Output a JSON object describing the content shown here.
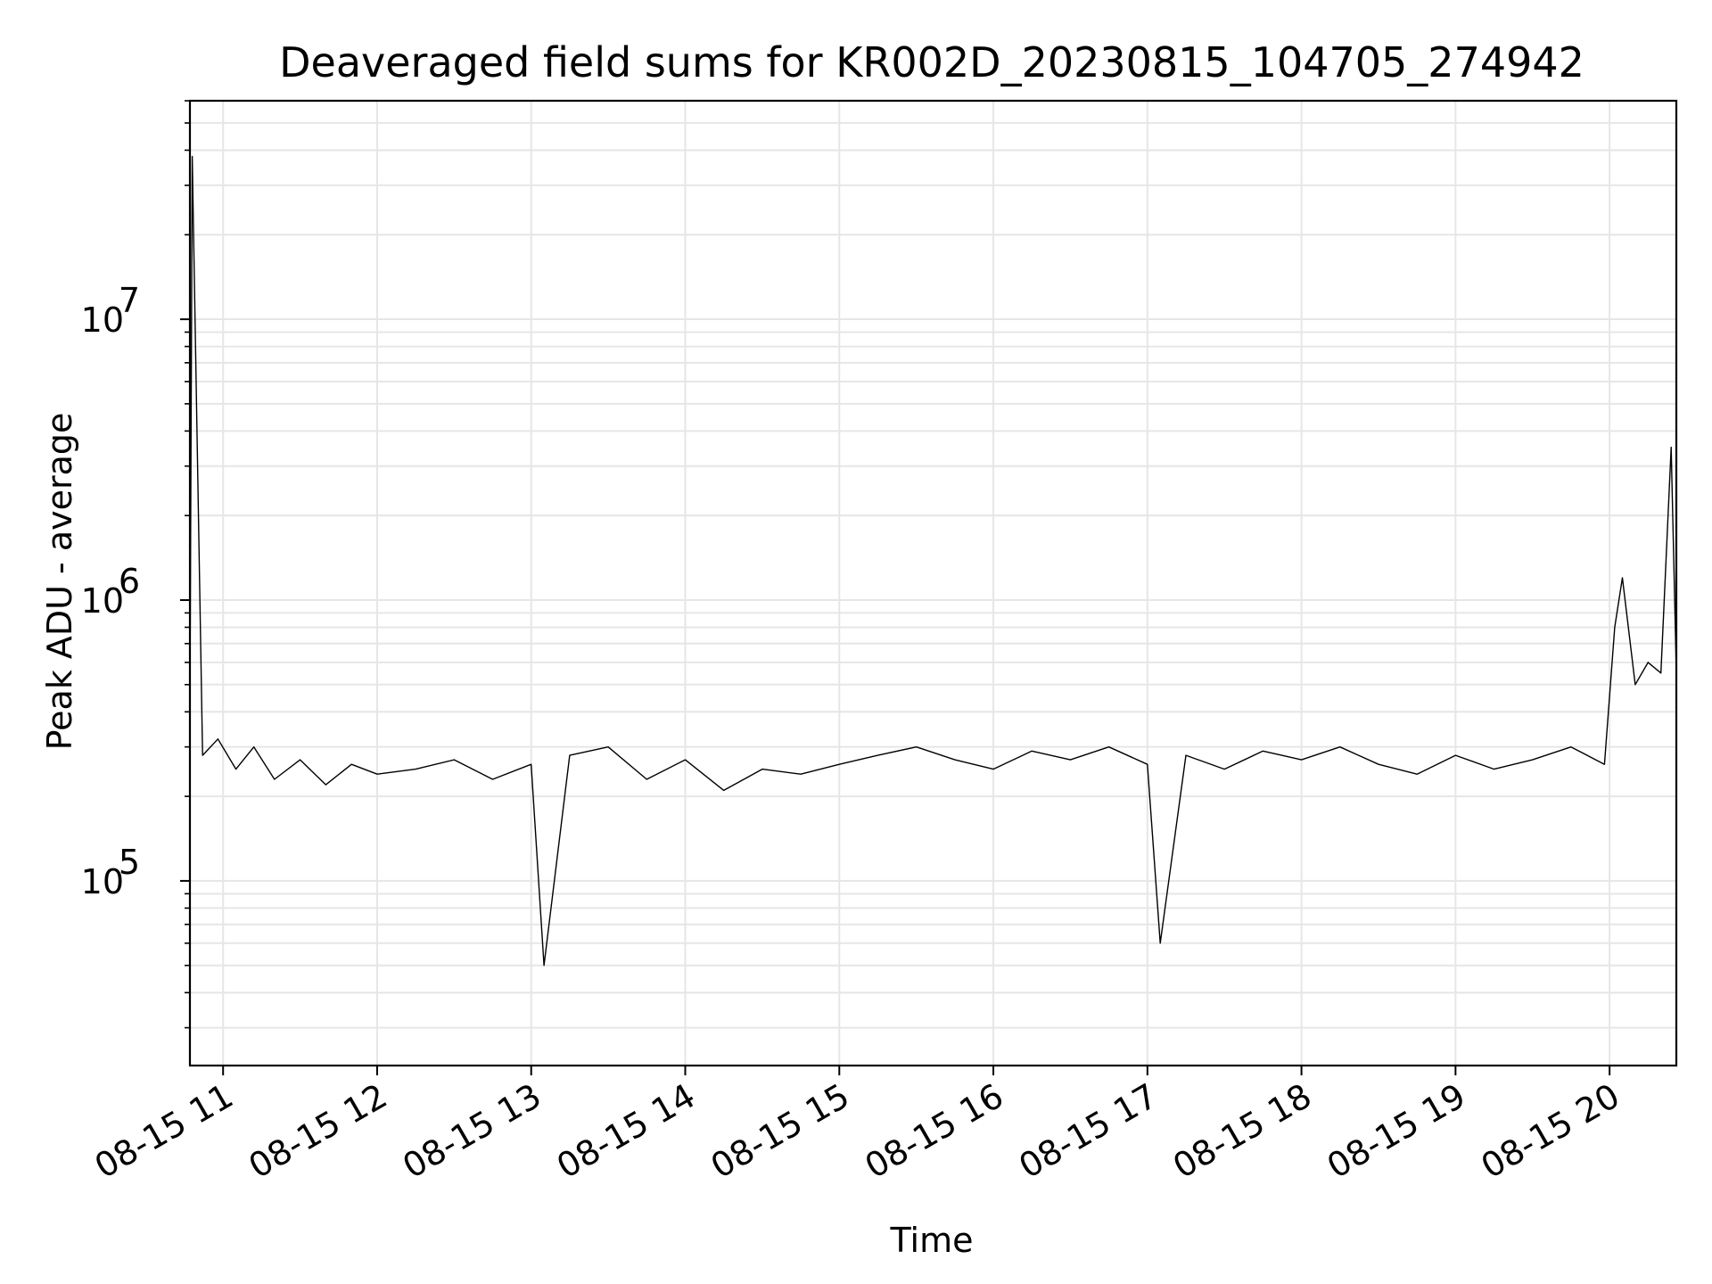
{
  "chart_data": {
    "type": "line",
    "title": "Deaveraged field sums for KR002D_20230815_104705_274942",
    "xlabel": "Time",
    "ylabel": "Peak ADU - average",
    "x_range": [
      "2023-08-15 10:47:05",
      "2023-08-15 20:26:00"
    ],
    "y_scale": "log",
    "ylim": [
      22000,
      60000000
    ],
    "grid": true,
    "x_ticks": [
      {
        "value": "2023-08-15 11:00",
        "label": "08-15 11"
      },
      {
        "value": "2023-08-15 12:00",
        "label": "08-15 12"
      },
      {
        "value": "2023-08-15 13:00",
        "label": "08-15 13"
      },
      {
        "value": "2023-08-15 14:00",
        "label": "08-15 14"
      },
      {
        "value": "2023-08-15 15:00",
        "label": "08-15 15"
      },
      {
        "value": "2023-08-15 16:00",
        "label": "08-15 16"
      },
      {
        "value": "2023-08-15 17:00",
        "label": "08-15 17"
      },
      {
        "value": "2023-08-15 18:00",
        "label": "08-15 18"
      },
      {
        "value": "2023-08-15 19:00",
        "label": "08-15 19"
      },
      {
        "value": "2023-08-15 20:00",
        "label": "08-15 20"
      }
    ],
    "y_ticks": [
      {
        "value": 100000,
        "base": "10",
        "exp": "5"
      },
      {
        "value": 1000000,
        "base": "10",
        "exp": "6"
      },
      {
        "value": 10000000,
        "base": "10",
        "exp": "7"
      }
    ],
    "series": [
      {
        "color": "#000000",
        "x": [
          "2023-08-15 10:47",
          "2023-08-15 10:48",
          "2023-08-15 10:52",
          "2023-08-15 10:58",
          "2023-08-15 11:05",
          "2023-08-15 11:12",
          "2023-08-15 11:20",
          "2023-08-15 11:30",
          "2023-08-15 11:40",
          "2023-08-15 11:50",
          "2023-08-15 12:00",
          "2023-08-15 12:15",
          "2023-08-15 12:30",
          "2023-08-15 12:45",
          "2023-08-15 13:00",
          "2023-08-15 13:05",
          "2023-08-15 13:15",
          "2023-08-15 13:30",
          "2023-08-15 13:45",
          "2023-08-15 14:00",
          "2023-08-15 14:15",
          "2023-08-15 14:30",
          "2023-08-15 14:45",
          "2023-08-15 15:00",
          "2023-08-15 15:15",
          "2023-08-15 15:30",
          "2023-08-15 15:45",
          "2023-08-15 16:00",
          "2023-08-15 16:15",
          "2023-08-15 16:30",
          "2023-08-15 16:45",
          "2023-08-15 17:00",
          "2023-08-15 17:05",
          "2023-08-15 17:15",
          "2023-08-15 17:30",
          "2023-08-15 17:45",
          "2023-08-15 18:00",
          "2023-08-15 18:15",
          "2023-08-15 18:30",
          "2023-08-15 18:45",
          "2023-08-15 19:00",
          "2023-08-15 19:15",
          "2023-08-15 19:30",
          "2023-08-15 19:45",
          "2023-08-15 19:58",
          "2023-08-15 20:02",
          "2023-08-15 20:05",
          "2023-08-15 20:10",
          "2023-08-15 20:15",
          "2023-08-15 20:20",
          "2023-08-15 20:24",
          "2023-08-15 20:26"
        ],
        "y": [
          300000,
          38000000,
          280000,
          320000,
          250000,
          300000,
          230000,
          270000,
          220000,
          260000,
          240000,
          250000,
          270000,
          230000,
          260000,
          50000,
          280000,
          300000,
          230000,
          270000,
          210000,
          250000,
          240000,
          260000,
          280000,
          300000,
          270000,
          250000,
          290000,
          270000,
          300000,
          260000,
          60000,
          280000,
          250000,
          290000,
          270000,
          300000,
          260000,
          240000,
          280000,
          250000,
          270000,
          300000,
          260000,
          800000,
          1200000,
          500000,
          600000,
          550000,
          3500000,
          550000
        ]
      }
    ]
  }
}
